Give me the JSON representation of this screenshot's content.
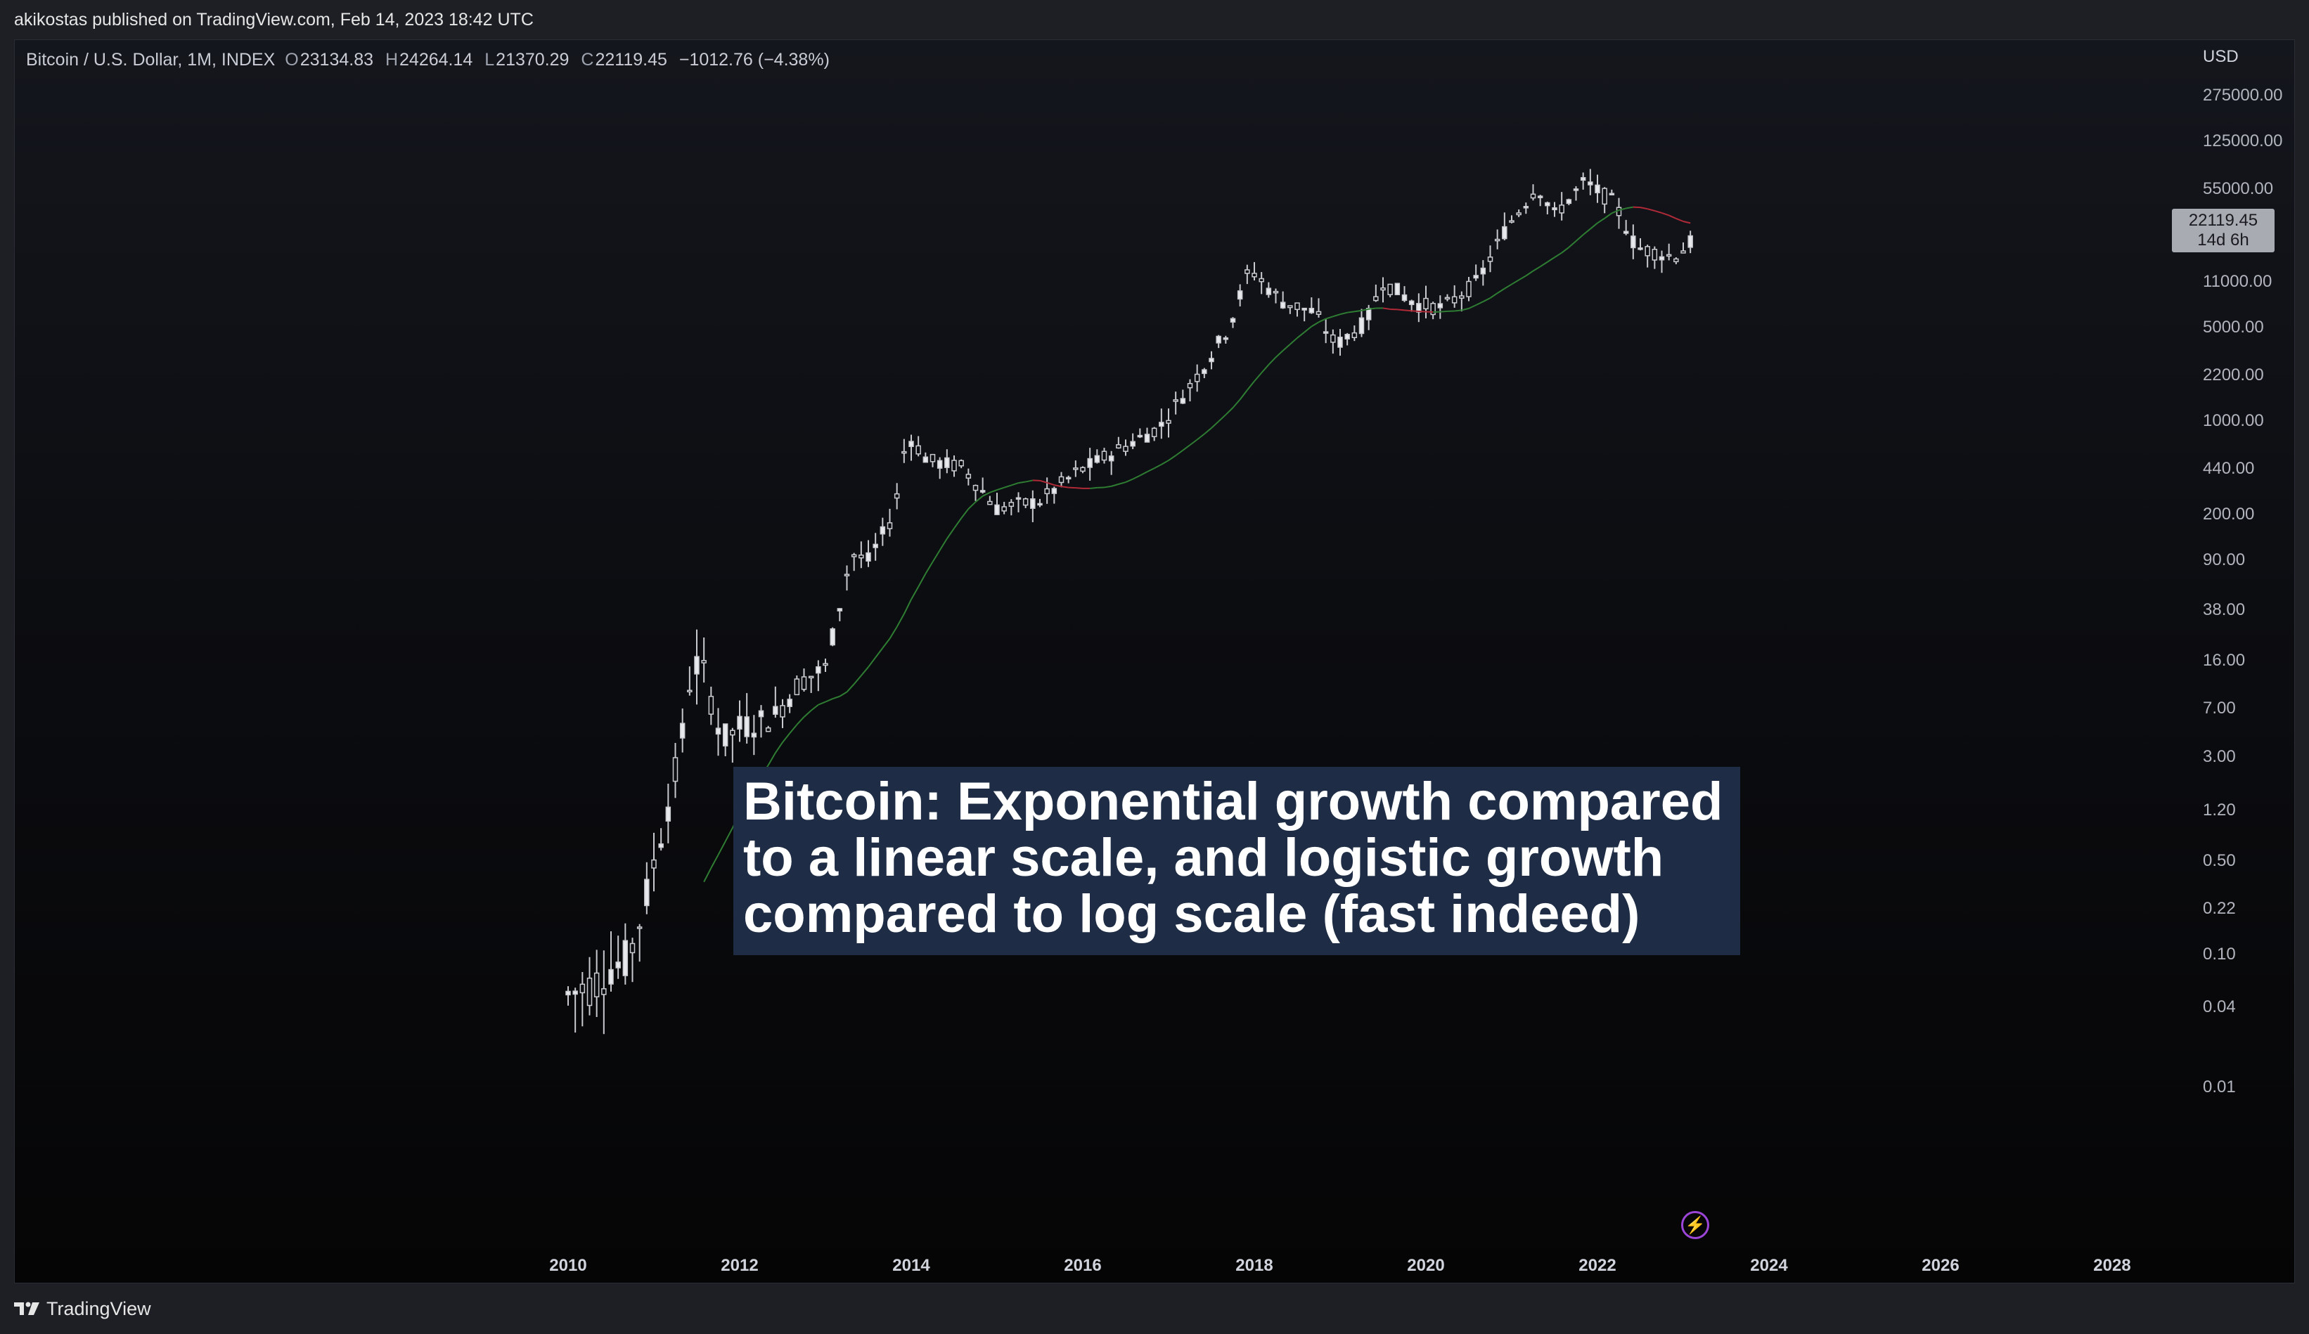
{
  "header": {
    "publisher_line": "akikostas published on TradingView.com, Feb 14, 2023 18:42 UTC"
  },
  "legend": {
    "symbol": "Bitcoin / U.S. Dollar, 1M, INDEX",
    "open_label": "O",
    "open": "23134.83",
    "high_label": "H",
    "high": "24264.14",
    "low_label": "L",
    "low": "21370.29",
    "close_label": "C",
    "close": "22119.45",
    "change": "−1012.76 (−4.38%)"
  },
  "banner": {
    "line1": "Bitcoin: Exponential growth compared",
    "line2": "to a linear scale, and logistic growth",
    "line3": "compared to log scale (fast indeed)"
  },
  "price_tag": {
    "price": "22119.45",
    "countdown": "14d 6h"
  },
  "footer": {
    "brand": "TradingView"
  },
  "colors": {
    "candle": "#c8cad0",
    "ma_rising": "#2e7d32",
    "ma_falling": "#b02a37",
    "banner_bg": "#1e2d45",
    "accent_purple": "#9c46d8"
  },
  "chart_data": {
    "type": "candlestick",
    "title": "Bitcoin / U.S. Dollar, 1M, INDEX",
    "y_scale": "log",
    "y_unit": "USD",
    "y_ticks": [
      "275000.00",
      "125000.00",
      "55000.00",
      "22119.45",
      "11000.00",
      "5000.00",
      "2200.00",
      "1000.00",
      "440.00",
      "200.00",
      "90.00",
      "38.00",
      "16.00",
      "7.00",
      "3.00",
      "1.20",
      "0.50",
      "0.22",
      "0.10",
      "0.04",
      "0.01"
    ],
    "y_tick_values": [
      275000,
      125000,
      55000,
      11000,
      5000,
      2200,
      1000,
      440,
      200,
      90,
      38,
      16,
      7,
      3,
      1.2,
      0.5,
      0.22,
      0.1,
      0.04,
      0.01
    ],
    "x_ticks": [
      "2010",
      "2012",
      "2014",
      "2016",
      "2018",
      "2020",
      "2022",
      "2024",
      "2026",
      "2028"
    ],
    "x_range": [
      2009.5,
      2029.0
    ],
    "y_range": [
      0.001,
      500000
    ],
    "moving_average_color_rule": "green when rising, red when falling",
    "price_path": [
      {
        "t": 2010.0,
        "p": 0.05
      },
      {
        "t": 2010.3,
        "p": 0.06
      },
      {
        "t": 2010.5,
        "p": 0.08
      },
      {
        "t": 2010.7,
        "p": 0.09
      },
      {
        "t": 2010.9,
        "p": 0.25
      },
      {
        "t": 2011.1,
        "p": 0.9
      },
      {
        "t": 2011.3,
        "p": 3.0
      },
      {
        "t": 2011.45,
        "p": 16.0
      },
      {
        "t": 2011.6,
        "p": 12.0
      },
      {
        "t": 2011.8,
        "p": 4.0
      },
      {
        "t": 2012.0,
        "p": 5.0
      },
      {
        "t": 2012.4,
        "p": 6.0
      },
      {
        "t": 2012.7,
        "p": 11.0
      },
      {
        "t": 2013.0,
        "p": 14.0
      },
      {
        "t": 2013.3,
        "p": 100.0
      },
      {
        "t": 2013.5,
        "p": 90.0
      },
      {
        "t": 2013.8,
        "p": 200.0
      },
      {
        "t": 2013.95,
        "p": 800.0
      },
      {
        "t": 2014.2,
        "p": 500.0
      },
      {
        "t": 2014.6,
        "p": 450.0
      },
      {
        "t": 2015.0,
        "p": 220.0
      },
      {
        "t": 2015.5,
        "p": 250.0
      },
      {
        "t": 2015.9,
        "p": 400.0
      },
      {
        "t": 2016.4,
        "p": 600.0
      },
      {
        "t": 2016.9,
        "p": 900.0
      },
      {
        "t": 2017.4,
        "p": 2500.0
      },
      {
        "t": 2017.7,
        "p": 5000.0
      },
      {
        "t": 2017.95,
        "p": 14000.0
      },
      {
        "t": 2018.3,
        "p": 8000.0
      },
      {
        "t": 2018.7,
        "p": 6500.0
      },
      {
        "t": 2018.95,
        "p": 3700.0
      },
      {
        "t": 2019.3,
        "p": 5500.0
      },
      {
        "t": 2019.5,
        "p": 11000.0
      },
      {
        "t": 2019.9,
        "p": 7500.0
      },
      {
        "t": 2020.2,
        "p": 7000.0
      },
      {
        "t": 2020.6,
        "p": 11000.0
      },
      {
        "t": 2020.95,
        "p": 29000.0
      },
      {
        "t": 2021.3,
        "p": 58000.0
      },
      {
        "t": 2021.5,
        "p": 35000.0
      },
      {
        "t": 2021.85,
        "p": 62000.0
      },
      {
        "t": 2022.2,
        "p": 43000.0
      },
      {
        "t": 2022.45,
        "p": 20000.0
      },
      {
        "t": 2022.9,
        "p": 17000.0
      },
      {
        "t": 2023.1,
        "p": 22119.45
      }
    ]
  }
}
